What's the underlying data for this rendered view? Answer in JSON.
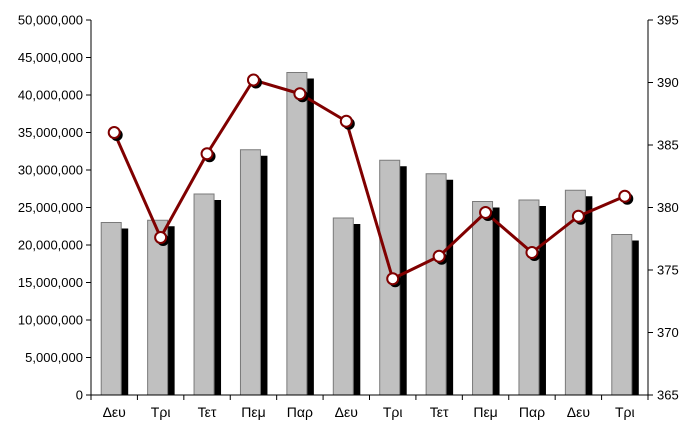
{
  "chart_data": {
    "type": "bar",
    "categories": [
      "Δευ",
      "Τρι",
      "Τετ",
      "Πεμ",
      "Παρ",
      "Δευ",
      "Τρι",
      "Τετ",
      "Πεμ",
      "Παρ",
      "Δευ",
      "Τρι"
    ],
    "series": [
      {
        "kind": "bar",
        "axis": "left",
        "values": [
          23000000,
          23300000,
          26800000,
          32700000,
          43000000,
          23600000,
          31300000,
          29500000,
          25800000,
          26000000,
          27300000,
          21400000
        ],
        "color": "#c0c0c0",
        "shadow_color": "#000000"
      },
      {
        "kind": "line",
        "axis": "right",
        "values": [
          386.0,
          377.6,
          384.3,
          390.2,
          389.1,
          386.9,
          374.3,
          376.1,
          379.6,
          376.4,
          379.3,
          380.9
        ],
        "color": "#800000",
        "marker_fill": "#ffffff",
        "marker_shadow": "#000000"
      }
    ],
    "y_left": {
      "min": 0,
      "max": 50000000,
      "step": 5000000,
      "tick_labels": [
        "0",
        "5,000,000",
        "10,000,000",
        "15,000,000",
        "20,000,000",
        "25,000,000",
        "30,000,000",
        "35,000,000",
        "40,000,000",
        "45,000,000",
        "50,000,000"
      ]
    },
    "y_right": {
      "min": 365,
      "max": 395,
      "step": 5,
      "tick_labels": [
        "365",
        "370",
        "375",
        "380",
        "385",
        "390",
        "395"
      ]
    },
    "title": "",
    "xlabel": "",
    "ylabel": "",
    "grid": false,
    "legend": "none"
  }
}
